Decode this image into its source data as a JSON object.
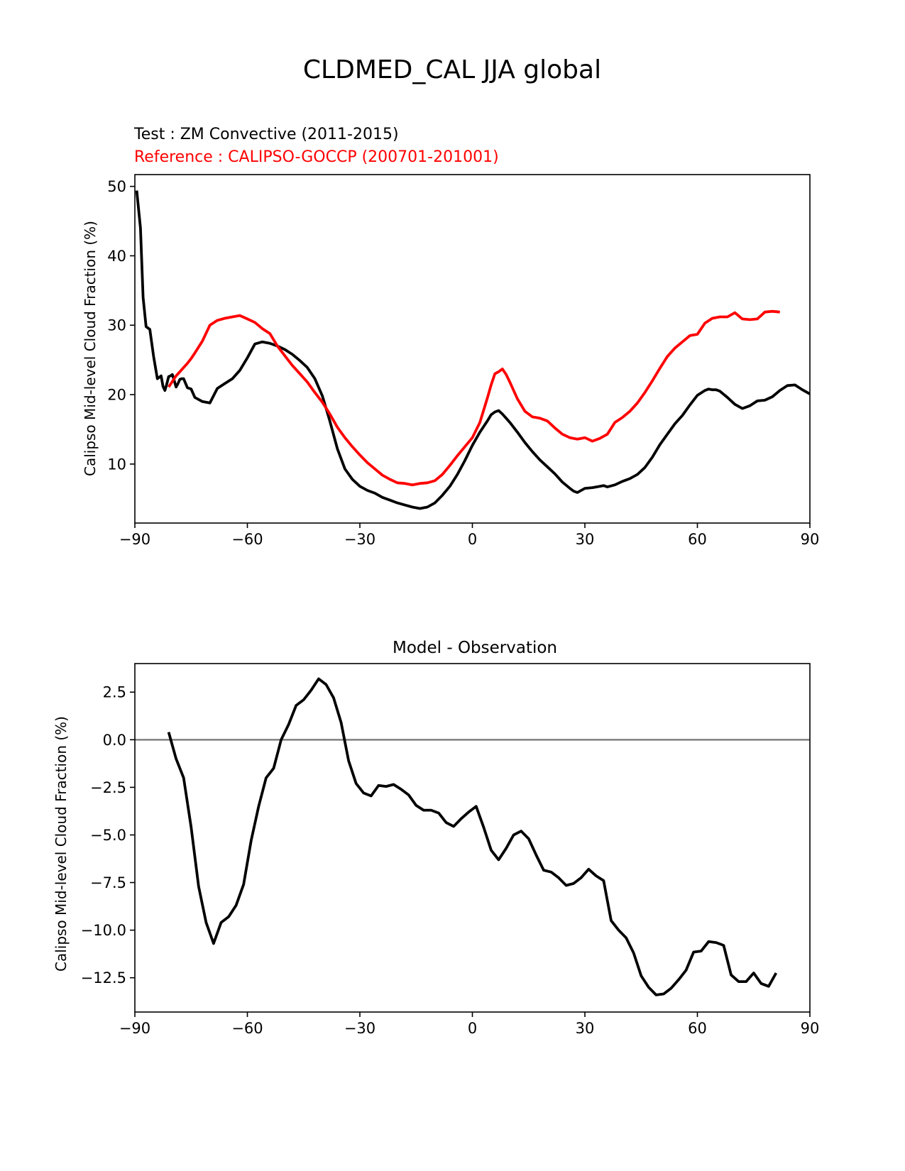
{
  "figure": {
    "title": "CLDMED_CAL JJA global",
    "test_label": "Test : ZM Convective (2011-2015)",
    "reference_label": "Reference : CALIPSO-GOCCP (200701-201001)",
    "colors": {
      "test": "#000000",
      "reference": "#ff0000",
      "zero_line": "#808080"
    }
  },
  "chart_data": [
    {
      "type": "line",
      "title": "",
      "xlabel": "",
      "ylabel": "Calipso Mid-level Cloud Fraction (%)",
      "xlim": [
        -90,
        90
      ],
      "ylim": [
        1.5,
        51.7
      ],
      "xticks": [
        -90,
        -60,
        -30,
        0,
        30,
        60,
        90
      ],
      "xtick_labels": [
        "−90",
        "−60",
        "−30",
        "0",
        "30",
        "60",
        "90"
      ],
      "yticks": [
        10,
        20,
        30,
        40,
        50
      ],
      "ytick_labels": [
        "10",
        "20",
        "30",
        "40",
        "50"
      ],
      "series": [
        {
          "name": "Test : ZM Convective (2011-2015)",
          "color": "#000000",
          "x": [
            -89.5,
            -88.5,
            -87.8,
            -87,
            -86,
            -85,
            -84,
            -83,
            -82.5,
            -82,
            -81.5,
            -81,
            -80.5,
            -80,
            -79.5,
            -79,
            -78.5,
            -78,
            -77.5,
            -77,
            -76,
            -75,
            -74,
            -72,
            -70,
            -68,
            -66,
            -64,
            -62,
            -60,
            -58,
            -56,
            -54,
            -52,
            -50,
            -48,
            -46,
            -44,
            -42,
            -40,
            -38,
            -36,
            -34,
            -32,
            -30,
            -28,
            -26,
            -24,
            -22,
            -20,
            -18,
            -16,
            -14,
            -12,
            -10,
            -8,
            -6,
            -4,
            -2,
            0,
            2,
            4,
            5,
            6,
            7,
            8,
            9,
            10,
            12,
            14,
            16,
            18,
            20,
            22,
            24,
            26,
            27,
            28,
            30,
            32,
            34,
            35,
            36,
            38,
            40,
            42,
            44,
            46,
            48,
            50,
            52,
            54,
            56,
            58,
            60,
            62,
            63,
            64,
            65,
            66,
            68,
            70,
            72,
            74,
            76,
            78,
            80,
            82,
            84,
            86,
            88,
            90
          ],
          "y": [
            49.4,
            44,
            34,
            29.8,
            29.4,
            25.5,
            22.3,
            22.7,
            21.2,
            20.6,
            21.5,
            22.6,
            22.7,
            22.9,
            22,
            21.1,
            21.6,
            22.2,
            22.3,
            22.3,
            21,
            20.8,
            19.6,
            19,
            18.8,
            20.9,
            21.6,
            22.3,
            23.5,
            25.3,
            27.3,
            27.6,
            27.4,
            27,
            26.5,
            25.8,
            24.9,
            23.9,
            22.3,
            19.8,
            16.2,
            12.2,
            9.3,
            7.8,
            6.8,
            6.2,
            5.8,
            5.2,
            4.8,
            4.4,
            4.1,
            3.8,
            3.6,
            3.8,
            4.4,
            5.5,
            6.8,
            8.5,
            10.5,
            12.7,
            14.6,
            16.2,
            17.1,
            17.5,
            17.7,
            17.2,
            16.6,
            16,
            14.6,
            13.1,
            11.8,
            10.6,
            9.6,
            8.6,
            7.4,
            6.5,
            6.1,
            5.9,
            6.5,
            6.6,
            6.8,
            6.9,
            6.7,
            7,
            7.5,
            7.9,
            8.5,
            9.5,
            11,
            12.8,
            14.3,
            15.8,
            17,
            18.5,
            19.9,
            20.6,
            20.8,
            20.7,
            20.7,
            20.5,
            19.6,
            18.6,
            18,
            18.4,
            19.1,
            19.2,
            19.7,
            20.6,
            21.3,
            21.4,
            20.7,
            20.1
          ]
        },
        {
          "name": "Reference : CALIPSO-GOCCP (200701-201001)",
          "color": "#ff0000",
          "x": [
            -81,
            -80,
            -79,
            -78,
            -77,
            -76,
            -75,
            -74,
            -72,
            -70,
            -68,
            -66,
            -64,
            -62,
            -60,
            -58,
            -56,
            -54,
            -52,
            -50,
            -48,
            -46,
            -44,
            -42,
            -40,
            -38,
            -36,
            -34,
            -32,
            -30,
            -28,
            -26,
            -24,
            -22,
            -20,
            -18,
            -16,
            -14,
            -12,
            -10,
            -8,
            -6,
            -4,
            -2,
            0,
            2,
            4,
            5,
            6,
            7,
            8,
            9,
            10,
            12,
            14,
            16,
            18,
            20,
            22,
            24,
            26,
            28,
            30,
            32,
            34,
            36,
            38,
            40,
            42,
            44,
            46,
            48,
            50,
            52,
            54,
            56,
            58,
            60,
            62,
            64,
            66,
            68,
            69,
            70,
            72,
            74,
            76,
            78,
            80,
            82
          ],
          "y": [
            21.1,
            21.9,
            22.7,
            23.3,
            23.9,
            24.5,
            25.2,
            26,
            27.7,
            30,
            30.7,
            31,
            31.2,
            31.4,
            30.9,
            30.4,
            29.5,
            28.8,
            27,
            25.6,
            24.2,
            23,
            21.8,
            20.3,
            18.9,
            17.2,
            15.3,
            13.8,
            12.5,
            11.3,
            10.2,
            9.3,
            8.4,
            7.8,
            7.3,
            7.2,
            7,
            7.2,
            7.3,
            7.6,
            8.5,
            9.8,
            11.2,
            12.5,
            13.8,
            16,
            19.5,
            21.4,
            23,
            23.3,
            23.7,
            22.9,
            21.8,
            19.4,
            17.6,
            16.8,
            16.6,
            16.2,
            15.2,
            14.3,
            13.8,
            13.6,
            13.8,
            13.3,
            13.7,
            14.3,
            16,
            16.7,
            17.6,
            18.8,
            20.3,
            22,
            23.8,
            25.5,
            26.7,
            27.6,
            28.5,
            28.7,
            30.3,
            31,
            31.2,
            31.2,
            31.5,
            31.8,
            30.9,
            30.8,
            30.9,
            31.9,
            32,
            31.9
          ]
        }
      ]
    },
    {
      "type": "line",
      "title": "Model - Observation",
      "xlabel": "",
      "ylabel": "Calipso Mid-level Cloud Fraction (%)",
      "xlim": [
        -90,
        90
      ],
      "ylim": [
        -14.3,
        4.0
      ],
      "xticks": [
        -90,
        -60,
        -30,
        0,
        30,
        60,
        90
      ],
      "xtick_labels": [
        "−90",
        "−60",
        "−30",
        "0",
        "30",
        "60",
        "90"
      ],
      "yticks": [
        2.5,
        0.0,
        -2.5,
        -5.0,
        -7.5,
        -10.0,
        -12.5
      ],
      "ytick_labels": [
        "2.5",
        "0.0",
        "−2.5",
        "−5.0",
        "−7.5",
        "−10.0",
        "−12.5"
      ],
      "reference_line": 0,
      "series": [
        {
          "name": "",
          "color": "#000000",
          "x": [
            -81,
            -79,
            -77,
            -75,
            -73,
            -71,
            -69,
            -67,
            -65,
            -63,
            -61,
            -59,
            -57,
            -55,
            -53,
            -51,
            -49,
            -47,
            -45,
            -43,
            -41,
            -39,
            -37,
            -35,
            -33,
            -31,
            -29,
            -27,
            -25,
            -23,
            -21,
            -19,
            -17,
            -15,
            -13,
            -11,
            -9,
            -7,
            -5,
            -3,
            -1,
            1,
            3,
            5,
            7,
            9,
            11,
            13,
            15,
            17,
            19,
            21,
            23,
            25,
            27,
            29,
            31,
            33,
            35,
            37,
            39,
            41,
            43,
            45,
            47,
            49,
            51,
            53,
            55,
            57,
            59,
            61,
            63,
            65,
            67,
            69,
            71,
            73,
            75,
            77,
            79,
            81
          ],
          "y": [
            0.4,
            -1,
            -2,
            -4.6,
            -7.7,
            -9.6,
            -10.7,
            -9.6,
            -9.3,
            -8.7,
            -7.6,
            -5.3,
            -3.5,
            -2,
            -1.5,
            0,
            0.8,
            1.8,
            2.1,
            2.6,
            3.2,
            2.9,
            2.2,
            0.9,
            -1.1,
            -2.3,
            -2.8,
            -2.95,
            -2.4,
            -2.45,
            -2.35,
            -2.6,
            -2.9,
            -3.45,
            -3.7,
            -3.7,
            -3.85,
            -4.35,
            -4.55,
            -4.15,
            -3.8,
            -3.5,
            -4.6,
            -5.8,
            -6.3,
            -5.7,
            -5,
            -4.8,
            -5.2,
            -6.05,
            -6.85,
            -6.95,
            -7.25,
            -7.65,
            -7.55,
            -7.25,
            -6.8,
            -7.15,
            -7.4,
            -9.5,
            -10,
            -10.4,
            -11.2,
            -12.4,
            -13,
            -13.4,
            -13.35,
            -13.05,
            -12.6,
            -12.1,
            -11.15,
            -11.1,
            -10.6,
            -10.65,
            -10.8,
            -12.35,
            -12.7,
            -12.7,
            -12.25,
            -12.8,
            -12.95,
            -12.25
          ]
        }
      ]
    }
  ]
}
